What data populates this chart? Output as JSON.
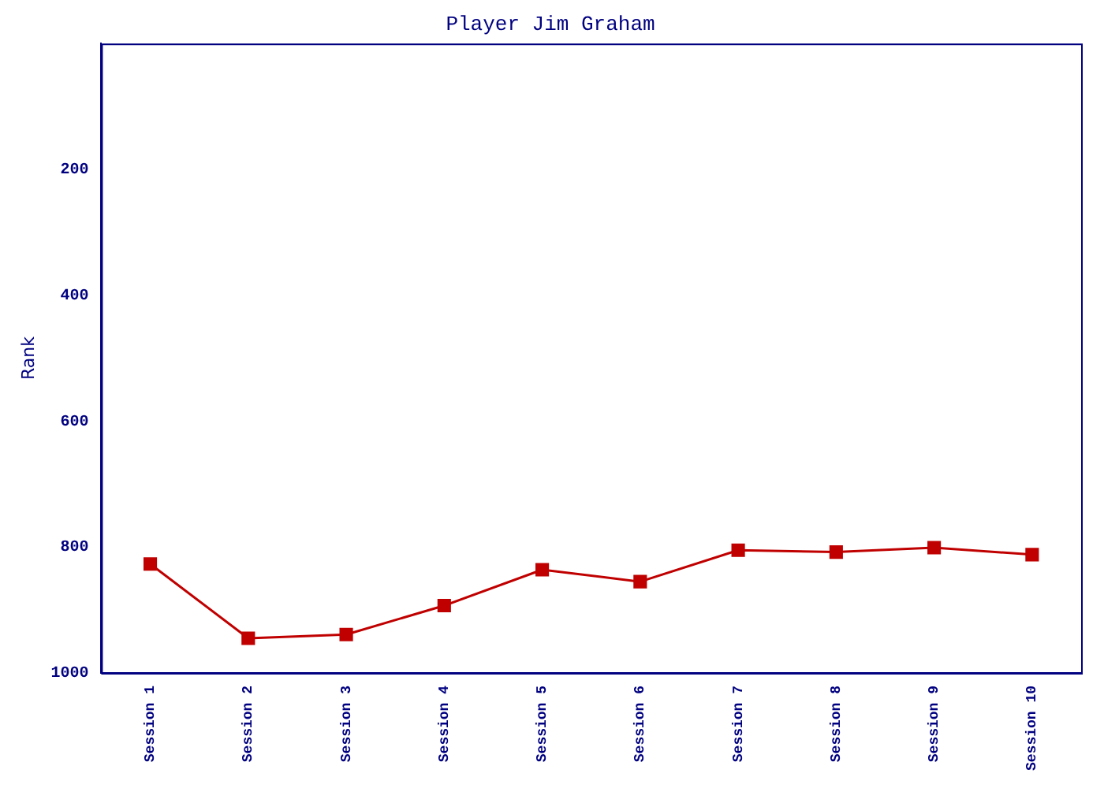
{
  "chart_data": {
    "type": "line",
    "title": "Player Jim Graham",
    "ylabel": "Rank",
    "categories": [
      "Session 1",
      "Session 2",
      "Session 3",
      "Session 4",
      "Session 5",
      "Session 6",
      "Session 7",
      "Session 8",
      "Session 9",
      "Session 10"
    ],
    "series": [
      {
        "color": "#c00000",
        "values": [
          827,
          945,
          939,
          893,
          836,
          855,
          805,
          808,
          801,
          812
        ]
      }
    ],
    "ylim": [
      1000,
      0
    ],
    "yticks": [
      200,
      400,
      600,
      800,
      1000
    ],
    "grid": false,
    "legend": false,
    "marker": "square",
    "line_style": "solid"
  }
}
